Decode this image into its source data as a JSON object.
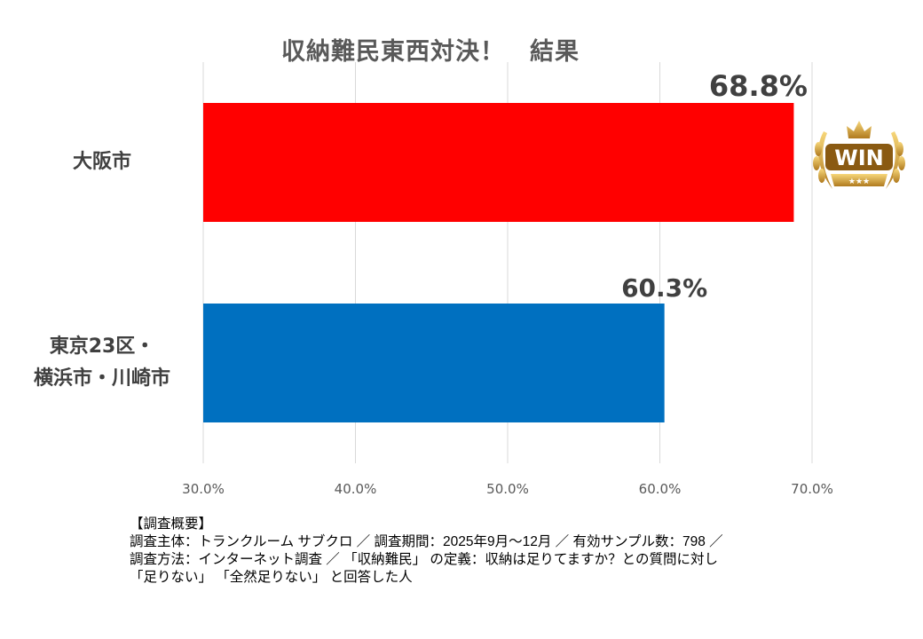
{
  "chart_data": {
    "type": "bar",
    "orientation": "horizontal",
    "title": "収納難民東西対決！　結果",
    "categories": [
      "大阪市",
      "東京23区・横浜市・川崎市"
    ],
    "category_lines": [
      [
        "大阪市"
      ],
      [
        "東京23区・",
        "横浜市・川崎市"
      ]
    ],
    "values": [
      68.8,
      60.3
    ],
    "data_labels": [
      "68.8%",
      "60.3%"
    ],
    "colors": [
      "#FF0000",
      "#0070C0"
    ],
    "xlim": [
      30,
      70
    ],
    "xticks": [
      30,
      40,
      50,
      60,
      70
    ],
    "xtick_labels": [
      "30.0%",
      "40.0%",
      "50.0%",
      "60.0%",
      "70.0%"
    ],
    "grid": true,
    "annotation_badge": {
      "text": "WIN",
      "category": "大阪市"
    }
  },
  "notes": {
    "heading": "【調査概要】",
    "lines": [
      "調査主体：トランクルーム サブクロ ／ 調査期間：2025年9月～12月 ／ 有効サンプル数：798 ／",
      "調査方法：インターネット調査 ／ 「収納難民」 の定義：収納は足りてますか？との質問に対し",
      "「足りない」 「全然足りない」 と回答した人"
    ]
  }
}
